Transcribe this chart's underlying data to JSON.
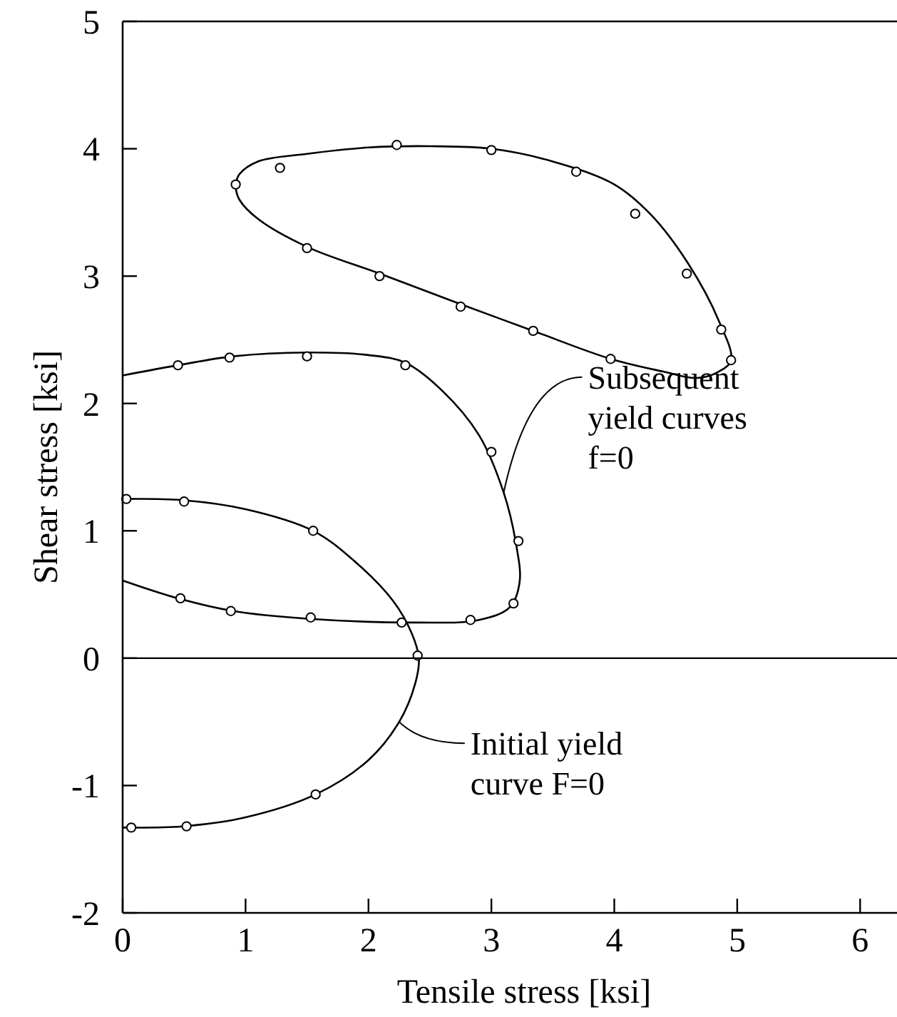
{
  "chart_data": {
    "type": "line",
    "xlabel": "Tensile stress  [ksi]",
    "ylabel": "Shear stress [ksi]",
    "xlim": [
      0,
      6.3
    ],
    "ylim": [
      -2,
      5
    ],
    "xticks": [
      0,
      1,
      2,
      3,
      4,
      5,
      6
    ],
    "yticks": [
      -2,
      -1,
      0,
      1,
      2,
      3,
      4,
      5
    ],
    "grid": false,
    "ref_lines": [
      {
        "axis": "y",
        "value": 0,
        "color": "#000000"
      }
    ],
    "annotations": [
      {
        "text": "Subsequent\nyield curves\nf=0",
        "x": 3.1,
        "y": 1.3
      },
      {
        "text": "Initial yield\ncurve  F=0",
        "x": 2.25,
        "y": -0.5
      }
    ],
    "series": [
      {
        "marker": "none",
        "color": "#000000",
        "x": [
          0.92,
          0.95,
          1.1,
          1.5,
          2.0,
          2.5,
          3.0,
          3.5,
          4.0,
          4.3,
          4.6,
          4.85,
          4.95,
          4.85,
          4.67,
          4.4,
          3.97,
          3.34,
          2.75,
          2.09,
          1.5,
          1.1,
          0.95,
          0.92
        ],
        "values": [
          3.72,
          3.8,
          3.9,
          3.96,
          4.01,
          4.02,
          4.0,
          3.9,
          3.72,
          3.48,
          3.1,
          2.65,
          2.34,
          2.25,
          2.2,
          2.25,
          2.35,
          2.57,
          2.78,
          3.02,
          3.23,
          3.45,
          3.6,
          3.69
        ]
      },
      {
        "marker": "none",
        "color": "#000000",
        "x": [
          0,
          0.45,
          0.9,
          1.5,
          2.0,
          2.3,
          2.6,
          2.9,
          3.1,
          3.2,
          3.23,
          3.15,
          2.9,
          2.4,
          1.5,
          0.9,
          0.45,
          0
        ],
        "values": [
          2.22,
          2.3,
          2.37,
          2.4,
          2.38,
          2.32,
          2.1,
          1.75,
          1.3,
          0.9,
          0.6,
          0.4,
          0.3,
          0.28,
          0.31,
          0.37,
          0.47,
          0.61
        ]
      },
      {
        "marker": "none",
        "color": "#000000",
        "x": [
          0,
          0.5,
          1.0,
          1.55,
          1.9,
          2.2,
          2.35,
          2.41,
          2.38,
          2.25,
          2.0,
          1.57,
          1.0,
          0.5,
          0
        ],
        "values": [
          1.25,
          1.24,
          1.17,
          1.0,
          0.75,
          0.45,
          0.2,
          0,
          -0.2,
          -0.5,
          -0.8,
          -1.07,
          -1.25,
          -1.32,
          -1.33
        ]
      },
      {
        "type": "scatter",
        "marker": "circle",
        "color": "#000000",
        "x": [
          0.92,
          1.28,
          2.23,
          3.0,
          3.69,
          4.17,
          4.59,
          4.87,
          4.95,
          3.97,
          3.34,
          2.75,
          2.09,
          1.5
        ],
        "values": [
          3.72,
          3.85,
          4.03,
          3.99,
          3.82,
          3.49,
          3.02,
          2.58,
          2.34,
          2.35,
          2.57,
          2.76,
          3.0,
          3.22
        ]
      },
      {
        "type": "scatter",
        "marker": "circle",
        "color": "#000000",
        "x": [
          0.45,
          0.87,
          1.5,
          2.3,
          3.0,
          3.22,
          3.18,
          2.83,
          2.27,
          1.53,
          0.88,
          0.47
        ],
        "values": [
          2.3,
          2.36,
          2.37,
          2.3,
          1.62,
          0.92,
          0.43,
          0.3,
          0.28,
          0.32,
          0.37,
          0.47
        ]
      },
      {
        "type": "scatter",
        "marker": "circle",
        "color": "#000000",
        "x": [
          0.03,
          0.5,
          1.55,
          2.4,
          1.57,
          0.52,
          0.07
        ],
        "values": [
          1.25,
          1.23,
          1.0,
          0.02,
          -1.07,
          -1.32,
          -1.33
        ]
      }
    ]
  }
}
